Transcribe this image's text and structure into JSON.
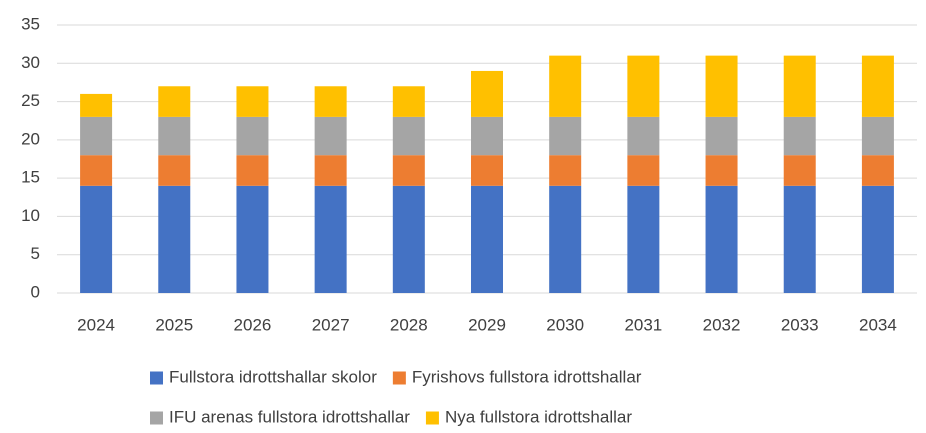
{
  "chart_data": {
    "type": "stacked_bar",
    "categories": [
      "2024",
      "2025",
      "2026",
      "2027",
      "2028",
      "2029",
      "2030",
      "2031",
      "2032",
      "2033",
      "2034"
    ],
    "series": [
      {
        "name": "Fullstora idrottshallar skolor",
        "color": "#4472c4",
        "values": [
          14,
          14,
          14,
          14,
          14,
          14,
          14,
          14,
          14,
          14,
          14
        ]
      },
      {
        "name": "Fyrishovs fullstora idrottshallar",
        "color": "#ed7d31",
        "values": [
          4,
          4,
          4,
          4,
          4,
          4,
          4,
          4,
          4,
          4,
          4
        ]
      },
      {
        "name": "IFU arenas fullstora idrottshallar",
        "color": "#a5a5a5",
        "values": [
          5,
          5,
          5,
          5,
          5,
          5,
          5,
          5,
          5,
          5,
          5
        ]
      },
      {
        "name": "Nya fullstora idrottshallar",
        "color": "#ffc000",
        "values": [
          3,
          4,
          4,
          4,
          4,
          6,
          8,
          8,
          8,
          8,
          8
        ]
      }
    ],
    "ylim": [
      0,
      35
    ],
    "yticks": [
      0,
      5,
      10,
      15,
      20,
      25,
      30,
      35
    ],
    "grid": true,
    "legend": "bottom"
  }
}
